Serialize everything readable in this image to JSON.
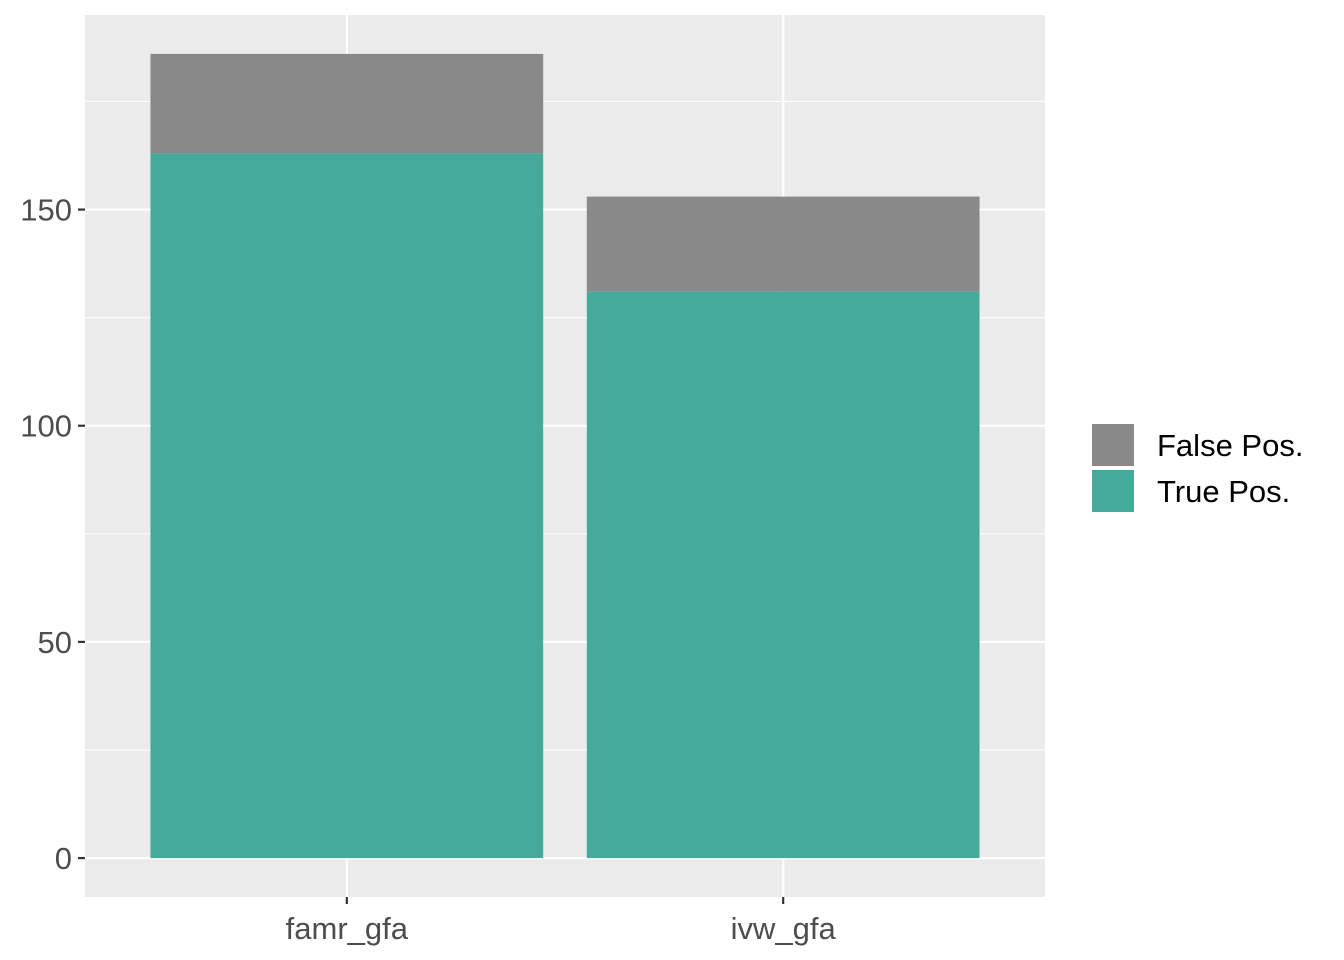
{
  "chart_data": {
    "type": "bar",
    "stacked": true,
    "categories": [
      "famr_gfa",
      "ivw_gfa"
    ],
    "series": [
      {
        "name": "True Pos.",
        "values": [
          163,
          131
        ],
        "color": "#45AA9A"
      },
      {
        "name": "False Pos.",
        "values": [
          23,
          22
        ],
        "color": "#898989"
      }
    ],
    "title": "",
    "xlabel": "",
    "ylabel": "",
    "ylim": [
      -9,
      195
    ],
    "yticks": [
      0,
      50,
      100,
      150
    ],
    "grid": true,
    "panel_background": "#EBEBEB",
    "legend": {
      "placement": "right",
      "entries": [
        "False Pos.",
        "True Pos."
      ]
    }
  }
}
